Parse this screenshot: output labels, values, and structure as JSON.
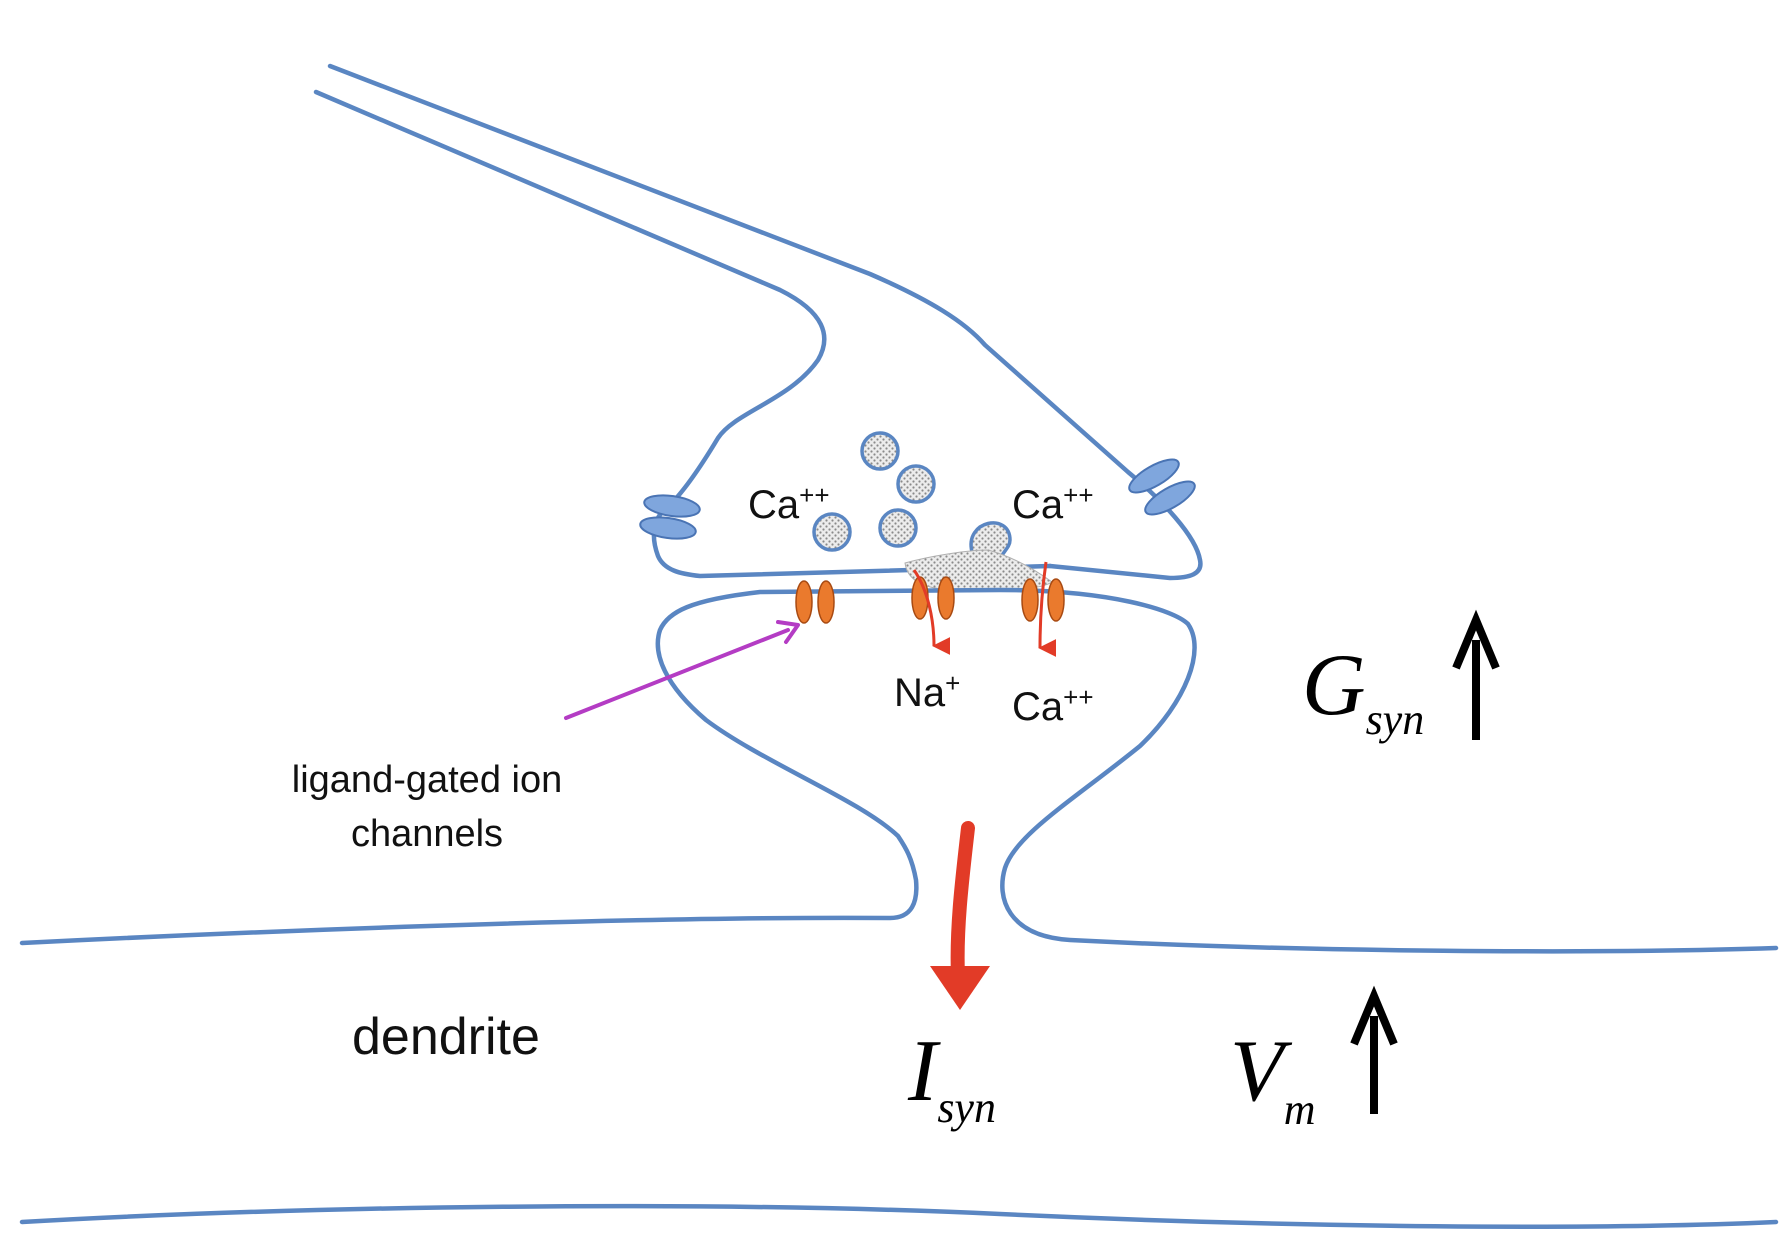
{
  "ion_labels": {
    "ca_left": "Ca",
    "ca_left_charge": "++",
    "ca_right": "Ca",
    "ca_right_charge": "++",
    "na": "Na",
    "na_charge": "+",
    "ca_post": "Ca",
    "ca_post_charge": "++"
  },
  "annotation": {
    "line1": "ligand-gated ion",
    "line2": "channels"
  },
  "dendrite_label": "dendrite",
  "symbols": {
    "isyn_main": "I",
    "isyn_sub": "syn",
    "gsyn_main": "G",
    "gsyn_sub": "syn",
    "vm_main": "V",
    "vm_sub": "m"
  },
  "colors": {
    "membrane": "#5a86c2",
    "calcium_channel": "#7fa6dd",
    "ligand_gated_channel": "#ea7a2d",
    "ion_flow_arrow": "#e23b27",
    "annotation_arrow": "#b43cc4",
    "increase_arrow": "#000000"
  }
}
